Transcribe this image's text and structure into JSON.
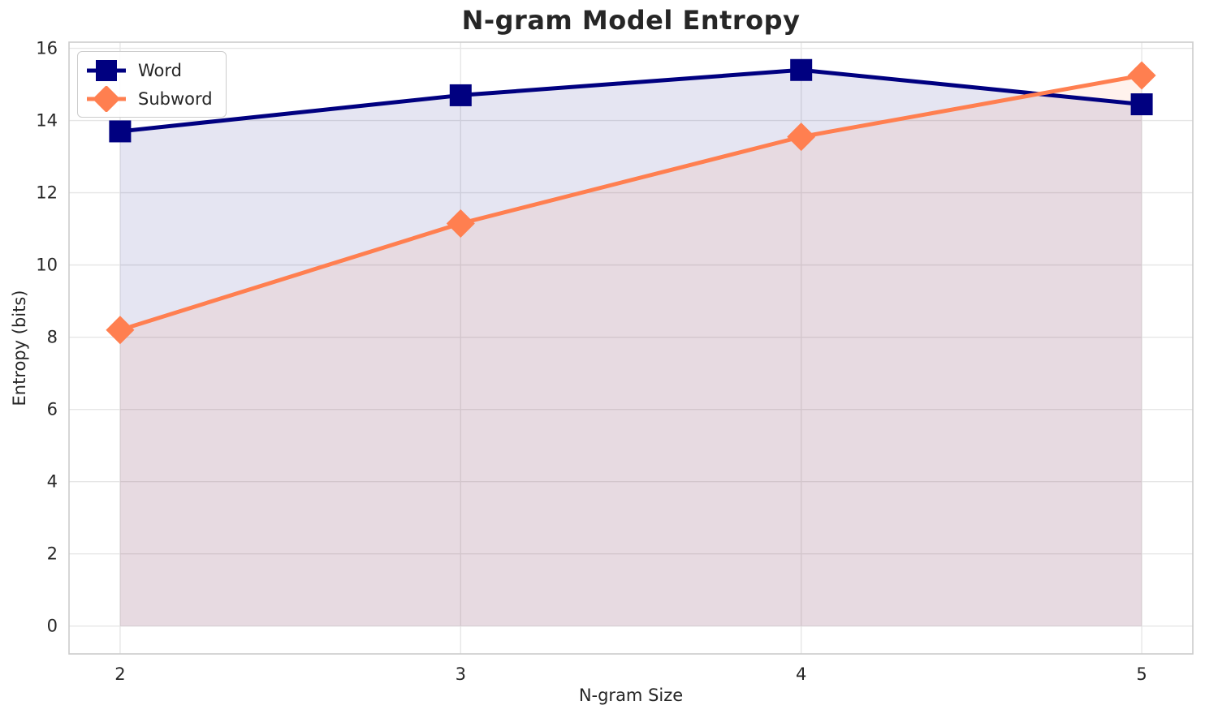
{
  "figure": {
    "background": "#ffffff",
    "text_color": "#262626",
    "grid_color": "#e6e6e6",
    "spine_color": "#cccccc"
  },
  "chart_data": {
    "type": "line",
    "title": "N-gram Model Entropy",
    "xlabel": "N-gram Size",
    "ylabel": "Entropy (bits)",
    "x": [
      2,
      3,
      4,
      5
    ],
    "series": [
      {
        "name": "Word",
        "marker": "square",
        "color": "#000080",
        "values": [
          13.7,
          14.7,
          15.4,
          14.45
        ],
        "fill_to_zero": true,
        "fill_alpha": 0.1
      },
      {
        "name": "Subword",
        "marker": "diamond",
        "color": "#FF7F50",
        "values": [
          8.2,
          11.15,
          13.55,
          15.25
        ],
        "fill_to_zero": true,
        "fill_alpha": 0.1
      }
    ],
    "xticks": [
      2,
      3,
      4,
      5
    ],
    "yticks": [
      0,
      2,
      4,
      6,
      8,
      10,
      12,
      14,
      16
    ],
    "xlim": [
      1.85,
      5.15
    ],
    "ylim": [
      -0.77,
      16.17
    ],
    "grid": true,
    "legend_position": "upper-left"
  }
}
